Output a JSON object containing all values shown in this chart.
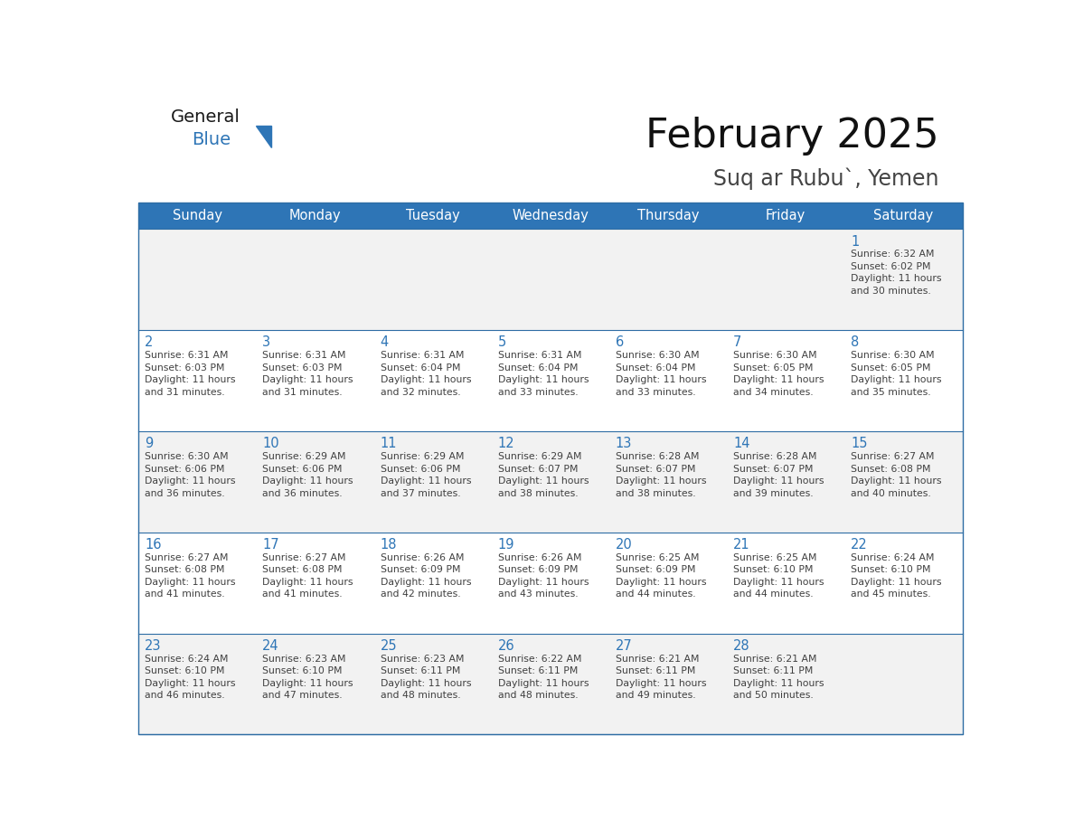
{
  "title": "February 2025",
  "subtitle": "Suq ar Rubu`, Yemen",
  "header_bg_color": "#2E75B6",
  "header_text_color": "#FFFFFF",
  "cell_bg_color": "#FFFFFF",
  "cell_border_color": "#2E6DA4",
  "alt_row_color": "#F2F2F2",
  "text_color": "#404040",
  "day_number_color": "#2E75B6",
  "days_of_week": [
    "Sunday",
    "Monday",
    "Tuesday",
    "Wednesday",
    "Thursday",
    "Friday",
    "Saturday"
  ],
  "logo_general_color": "#1A1A1A",
  "logo_blue_color": "#2E75B6",
  "weeks": [
    [
      {
        "day": null,
        "info": null
      },
      {
        "day": null,
        "info": null
      },
      {
        "day": null,
        "info": null
      },
      {
        "day": null,
        "info": null
      },
      {
        "day": null,
        "info": null
      },
      {
        "day": null,
        "info": null
      },
      {
        "day": 1,
        "info": "Sunrise: 6:32 AM\nSunset: 6:02 PM\nDaylight: 11 hours\nand 30 minutes."
      }
    ],
    [
      {
        "day": 2,
        "info": "Sunrise: 6:31 AM\nSunset: 6:03 PM\nDaylight: 11 hours\nand 31 minutes."
      },
      {
        "day": 3,
        "info": "Sunrise: 6:31 AM\nSunset: 6:03 PM\nDaylight: 11 hours\nand 31 minutes."
      },
      {
        "day": 4,
        "info": "Sunrise: 6:31 AM\nSunset: 6:04 PM\nDaylight: 11 hours\nand 32 minutes."
      },
      {
        "day": 5,
        "info": "Sunrise: 6:31 AM\nSunset: 6:04 PM\nDaylight: 11 hours\nand 33 minutes."
      },
      {
        "day": 6,
        "info": "Sunrise: 6:30 AM\nSunset: 6:04 PM\nDaylight: 11 hours\nand 33 minutes."
      },
      {
        "day": 7,
        "info": "Sunrise: 6:30 AM\nSunset: 6:05 PM\nDaylight: 11 hours\nand 34 minutes."
      },
      {
        "day": 8,
        "info": "Sunrise: 6:30 AM\nSunset: 6:05 PM\nDaylight: 11 hours\nand 35 minutes."
      }
    ],
    [
      {
        "day": 9,
        "info": "Sunrise: 6:30 AM\nSunset: 6:06 PM\nDaylight: 11 hours\nand 36 minutes."
      },
      {
        "day": 10,
        "info": "Sunrise: 6:29 AM\nSunset: 6:06 PM\nDaylight: 11 hours\nand 36 minutes."
      },
      {
        "day": 11,
        "info": "Sunrise: 6:29 AM\nSunset: 6:06 PM\nDaylight: 11 hours\nand 37 minutes."
      },
      {
        "day": 12,
        "info": "Sunrise: 6:29 AM\nSunset: 6:07 PM\nDaylight: 11 hours\nand 38 minutes."
      },
      {
        "day": 13,
        "info": "Sunrise: 6:28 AM\nSunset: 6:07 PM\nDaylight: 11 hours\nand 38 minutes."
      },
      {
        "day": 14,
        "info": "Sunrise: 6:28 AM\nSunset: 6:07 PM\nDaylight: 11 hours\nand 39 minutes."
      },
      {
        "day": 15,
        "info": "Sunrise: 6:27 AM\nSunset: 6:08 PM\nDaylight: 11 hours\nand 40 minutes."
      }
    ],
    [
      {
        "day": 16,
        "info": "Sunrise: 6:27 AM\nSunset: 6:08 PM\nDaylight: 11 hours\nand 41 minutes."
      },
      {
        "day": 17,
        "info": "Sunrise: 6:27 AM\nSunset: 6:08 PM\nDaylight: 11 hours\nand 41 minutes."
      },
      {
        "day": 18,
        "info": "Sunrise: 6:26 AM\nSunset: 6:09 PM\nDaylight: 11 hours\nand 42 minutes."
      },
      {
        "day": 19,
        "info": "Sunrise: 6:26 AM\nSunset: 6:09 PM\nDaylight: 11 hours\nand 43 minutes."
      },
      {
        "day": 20,
        "info": "Sunrise: 6:25 AM\nSunset: 6:09 PM\nDaylight: 11 hours\nand 44 minutes."
      },
      {
        "day": 21,
        "info": "Sunrise: 6:25 AM\nSunset: 6:10 PM\nDaylight: 11 hours\nand 44 minutes."
      },
      {
        "day": 22,
        "info": "Sunrise: 6:24 AM\nSunset: 6:10 PM\nDaylight: 11 hours\nand 45 minutes."
      }
    ],
    [
      {
        "day": 23,
        "info": "Sunrise: 6:24 AM\nSunset: 6:10 PM\nDaylight: 11 hours\nand 46 minutes."
      },
      {
        "day": 24,
        "info": "Sunrise: 6:23 AM\nSunset: 6:10 PM\nDaylight: 11 hours\nand 47 minutes."
      },
      {
        "day": 25,
        "info": "Sunrise: 6:23 AM\nSunset: 6:11 PM\nDaylight: 11 hours\nand 48 minutes."
      },
      {
        "day": 26,
        "info": "Sunrise: 6:22 AM\nSunset: 6:11 PM\nDaylight: 11 hours\nand 48 minutes."
      },
      {
        "day": 27,
        "info": "Sunrise: 6:21 AM\nSunset: 6:11 PM\nDaylight: 11 hours\nand 49 minutes."
      },
      {
        "day": 28,
        "info": "Sunrise: 6:21 AM\nSunset: 6:11 PM\nDaylight: 11 hours\nand 50 minutes."
      },
      {
        "day": null,
        "info": null
      }
    ]
  ],
  "fig_width": 11.88,
  "fig_height": 9.18,
  "dpi": 100
}
